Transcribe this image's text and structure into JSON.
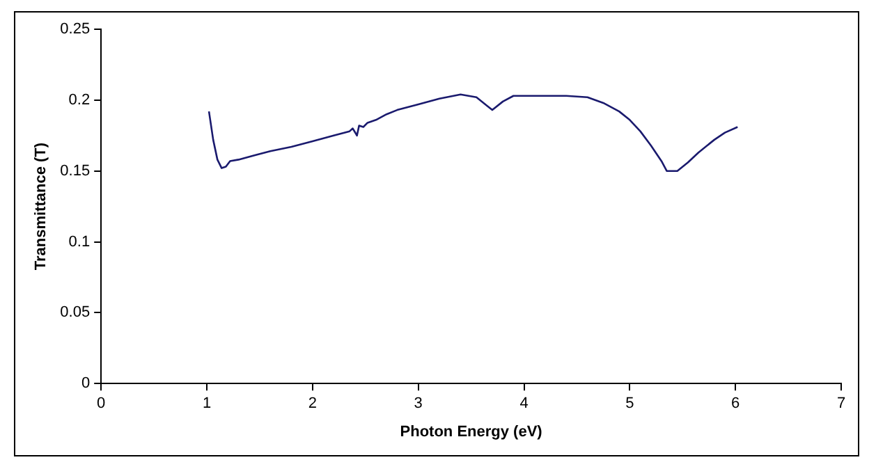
{
  "chart_data": {
    "type": "line",
    "xlabel": "Photon Energy (eV)",
    "ylabel": "Transmittance (T)",
    "x": [
      1.02,
      1.06,
      1.1,
      1.14,
      1.18,
      1.22,
      1.3,
      1.45,
      1.6,
      1.8,
      2.0,
      2.2,
      2.35,
      2.38,
      2.42,
      2.44,
      2.48,
      2.52,
      2.6,
      2.7,
      2.8,
      3.0,
      3.2,
      3.4,
      3.55,
      3.65,
      3.7,
      3.8,
      3.9,
      4.0,
      4.2,
      4.4,
      4.6,
      4.75,
      4.9,
      5.0,
      5.1,
      5.2,
      5.3,
      5.35,
      5.45,
      5.55,
      5.65,
      5.8,
      5.9,
      6.02
    ],
    "series": [
      {
        "color": "#1a1a6e",
        "values": [
          0.192,
          0.172,
          0.158,
          0.152,
          0.153,
          0.157,
          0.158,
          0.161,
          0.164,
          0.167,
          0.171,
          0.175,
          0.178,
          0.18,
          0.175,
          0.182,
          0.181,
          0.184,
          0.186,
          0.19,
          0.193,
          0.197,
          0.201,
          0.204,
          0.202,
          0.196,
          0.193,
          0.199,
          0.203,
          0.203,
          0.203,
          0.203,
          0.202,
          0.198,
          0.192,
          0.186,
          0.178,
          0.168,
          0.157,
          0.15,
          0.15,
          0.156,
          0.163,
          0.172,
          0.177,
          0.181
        ]
      }
    ],
    "xlim": [
      0,
      7
    ],
    "xticks": [
      0,
      1,
      2,
      3,
      4,
      5,
      6,
      7
    ],
    "ylim": [
      0,
      0.25
    ],
    "yticks": [
      0,
      0.05,
      0.1,
      0.15,
      0.2,
      0.25
    ],
    "grid": false,
    "legend": false,
    "marker": "none",
    "line_style": "solid"
  }
}
